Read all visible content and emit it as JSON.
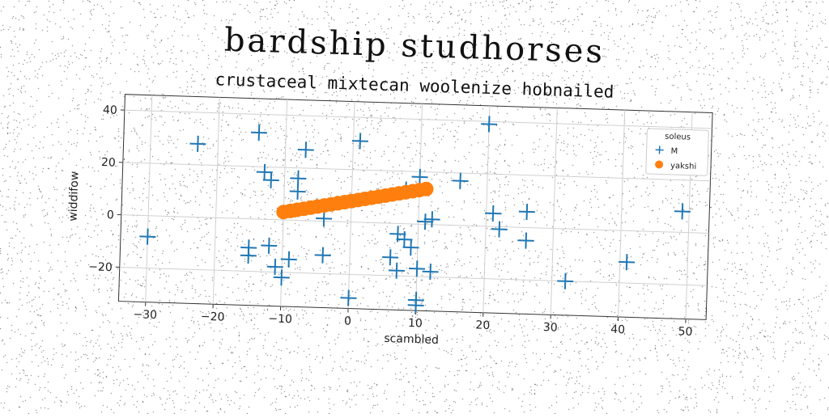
{
  "chart_data": {
    "type": "scatter",
    "title": "bardship studhorses",
    "subtitle": "crustaceal mixtecan woolenize hobnailed",
    "xlabel": "scambled",
    "ylabel": "widdifow",
    "xlim": [
      -34,
      53
    ],
    "ylim": [
      -33,
      46
    ],
    "xticks": [
      -30,
      -20,
      -10,
      0,
      10,
      20,
      30,
      40,
      50
    ],
    "yticks": [
      -20,
      0,
      20,
      40
    ],
    "grid": true,
    "legend": {
      "title": "soleus",
      "placement": "top-right"
    },
    "series": [
      {
        "name": "M",
        "marker": "plus",
        "color": "#1f77b4",
        "points": [
          [
            -30,
            -8
          ],
          [
            -23,
            28
          ],
          [
            -14,
            33
          ],
          [
            -13,
            18
          ],
          [
            -12,
            15
          ],
          [
            -8,
            16
          ],
          [
            -8,
            11
          ],
          [
            -7,
            27
          ],
          [
            -15,
            -11
          ],
          [
            -15,
            -14
          ],
          [
            -12,
            -10
          ],
          [
            -11,
            -18
          ],
          [
            -9,
            -15
          ],
          [
            -10,
            -22
          ],
          [
            -4,
            -13
          ],
          [
            -4,
            1
          ],
          [
            1,
            31
          ],
          [
            0,
            -29
          ],
          [
            6,
            -13
          ],
          [
            7,
            -4
          ],
          [
            8,
            -6
          ],
          [
            7,
            -18
          ],
          [
            9,
            -9
          ],
          [
            10,
            -17
          ],
          [
            10,
            18
          ],
          [
            8,
            13
          ],
          [
            11,
            1
          ],
          [
            10,
            -29
          ],
          [
            10,
            -31
          ],
          [
            12,
            -18
          ],
          [
            12,
            2
          ],
          [
            16,
            17
          ],
          [
            20,
            39
          ],
          [
            21,
            5
          ],
          [
            22,
            -1
          ],
          [
            26,
            6
          ],
          [
            26,
            -5
          ],
          [
            32,
            -20
          ],
          [
            41,
            -12
          ],
          [
            49,
            8
          ]
        ]
      },
      {
        "name": "yakshi",
        "marker": "circle",
        "color": "#ff7f0e",
        "points": [
          [
            -10,
            3.0
          ],
          [
            -9,
            3.5
          ],
          [
            -8,
            4.0
          ],
          [
            -7,
            4.5
          ],
          [
            -6,
            5.0
          ],
          [
            -5,
            5.5
          ],
          [
            -4,
            6.0
          ],
          [
            -3,
            6.5
          ],
          [
            -2,
            7.0
          ],
          [
            -1,
            7.5
          ],
          [
            0,
            8.0
          ],
          [
            1,
            8.5
          ],
          [
            2,
            9.0
          ],
          [
            3,
            9.5
          ],
          [
            4,
            10.0
          ],
          [
            5,
            10.5
          ],
          [
            6,
            11.0
          ],
          [
            7,
            11.5
          ],
          [
            8,
            12.0
          ],
          [
            9,
            12.5
          ],
          [
            10,
            13.0
          ],
          [
            11,
            13.5
          ]
        ]
      }
    ]
  }
}
